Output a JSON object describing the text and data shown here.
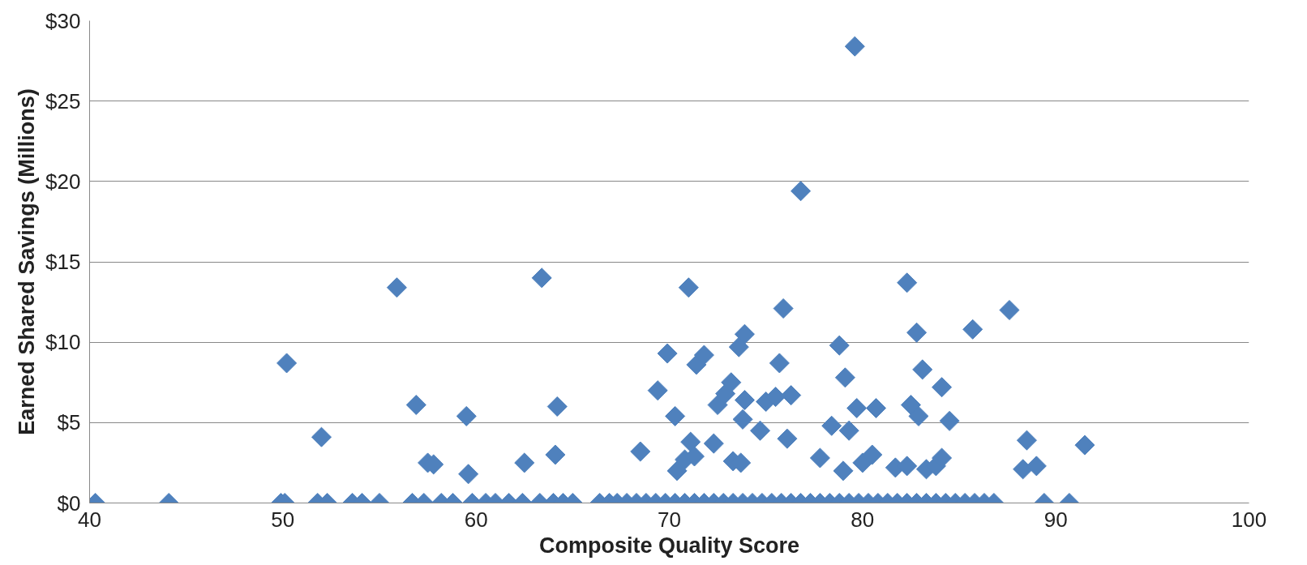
{
  "chart_data": {
    "type": "scatter",
    "xlabel": "Composite Quality Score",
    "ylabel": "Earned Shared Savings (Millions)",
    "xlim": [
      40,
      100
    ],
    "xticks": [
      40,
      50,
      60,
      70,
      80,
      90,
      100
    ],
    "ylim": [
      0,
      30
    ],
    "yticks": [
      {
        "value": 0,
        "label": "$0"
      },
      {
        "value": 5,
        "label": "$5"
      },
      {
        "value": 10,
        "label": "$10"
      },
      {
        "value": 15,
        "label": "$15"
      },
      {
        "value": 20,
        "label": "$20"
      },
      {
        "value": 25,
        "label": "$25"
      },
      {
        "value": 30,
        "label": "$30"
      }
    ],
    "grid": "y",
    "marker": "diamond",
    "series": [
      {
        "color": "#4f81bd",
        "x": [
          50.2,
          52.0,
          55.9,
          56.9,
          57.5,
          57.8,
          59.5,
          59.6,
          62.5,
          63.4,
          64.1,
          64.2,
          68.5,
          69.4,
          69.9,
          70.3,
          70.4,
          70.8,
          71.0,
          71.1,
          71.4,
          71.8,
          71.3,
          72.3,
          72.5,
          72.9,
          73.2,
          73.3,
          73.6,
          73.9,
          73.8,
          73.9,
          73.7,
          74.7,
          75.0,
          75.7,
          75.9,
          76.1,
          76.3,
          75.5,
          76.8,
          77.8,
          78.4,
          78.8,
          79.1,
          79.3,
          79.6,
          79.7,
          80.0,
          80.5,
          80.7,
          79.0,
          81.7,
          82.3,
          82.3,
          82.5,
          82.8,
          82.9,
          83.1,
          83.3,
          83.8,
          84.1,
          84.1,
          84.5,
          85.7,
          87.6,
          88.3,
          88.5,
          89.0,
          91.5,
          40.3,
          44.1,
          49.9,
          50.1,
          51.8,
          52.3,
          53.6,
          54.1,
          55.0,
          56.7,
          57.3,
          58.2,
          58.8,
          59.8,
          60.5,
          61.0,
          61.7,
          62.4,
          63.3,
          64.0,
          64.5,
          65.0,
          66.4,
          66.9,
          67.3,
          67.8,
          68.3,
          68.8,
          69.3,
          69.8,
          70.3,
          70.8,
          71.3,
          71.8,
          72.3,
          72.8,
          73.3,
          73.8,
          74.3,
          74.8,
          75.3,
          75.8,
          76.3,
          76.8,
          77.3,
          77.8,
          78.3,
          78.8,
          79.3,
          79.8,
          80.3,
          80.8,
          81.3,
          81.8,
          82.3,
          82.8,
          83.3,
          83.8,
          84.3,
          84.8,
          85.3,
          85.8,
          86.3,
          86.8,
          89.4,
          90.7
        ],
        "values": [
          8.7,
          4.1,
          13.4,
          6.1,
          2.5,
          2.4,
          5.4,
          1.8,
          2.5,
          14.0,
          3.0,
          6.0,
          3.2,
          7.0,
          9.3,
          5.4,
          2.0,
          2.7,
          13.4,
          3.8,
          8.6,
          9.2,
          2.9,
          3.7,
          6.1,
          6.8,
          7.5,
          2.6,
          9.7,
          10.5,
          5.2,
          6.4,
          2.5,
          4.5,
          6.3,
          8.7,
          12.1,
          4.0,
          6.7,
          6.6,
          19.4,
          2.8,
          4.8,
          9.8,
          7.8,
          4.5,
          28.4,
          5.9,
          2.5,
          3.0,
          5.9,
          2.0,
          2.2,
          13.7,
          2.3,
          6.1,
          10.6,
          5.4,
          8.3,
          2.1,
          2.3,
          7.2,
          2.8,
          5.1,
          10.8,
          12.0,
          2.1,
          3.9,
          2.3,
          3.6,
          0,
          0,
          0,
          0,
          0,
          0,
          0,
          0,
          0,
          0,
          0,
          0,
          0,
          0,
          0,
          0,
          0,
          0,
          0,
          0,
          0,
          0,
          0,
          0,
          0,
          0,
          0,
          0,
          0,
          0,
          0,
          0,
          0,
          0,
          0,
          0,
          0,
          0,
          0,
          0,
          0,
          0,
          0,
          0,
          0,
          0,
          0,
          0,
          0,
          0,
          0,
          0,
          0,
          0,
          0,
          0,
          0,
          0,
          0,
          0,
          0,
          0,
          0,
          0,
          0,
          0
        ]
      }
    ]
  }
}
